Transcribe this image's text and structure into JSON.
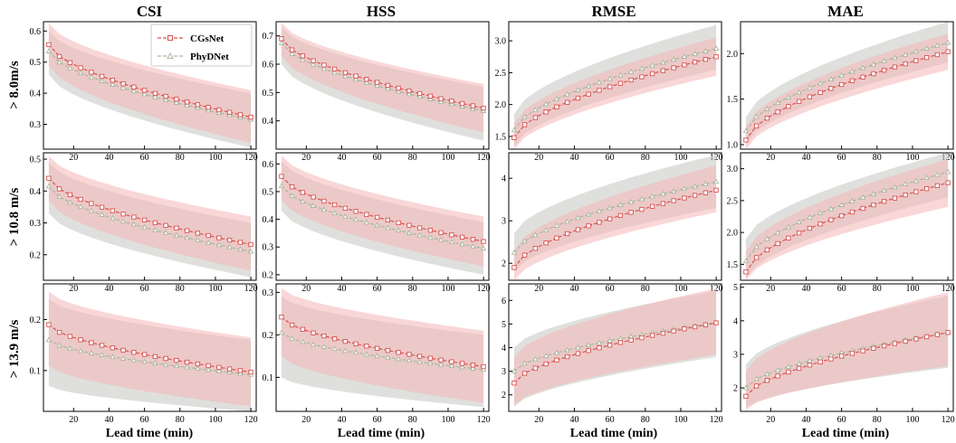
{
  "chart_data": {
    "type": "line",
    "column_titles": [
      "CSI",
      "HSS",
      "RMSE",
      "MAE"
    ],
    "row_labels": [
      "> 8.0m/s",
      "> 10.8 m/s",
      "> 13.9 m/s"
    ],
    "xlabel": "Lead time (min)",
    "x": [
      6,
      12,
      18,
      24,
      30,
      36,
      42,
      48,
      54,
      60,
      66,
      72,
      78,
      84,
      90,
      96,
      102,
      108,
      114,
      120
    ],
    "x_range": [
      3,
      123
    ],
    "x_ticks": [
      20,
      40,
      60,
      80,
      100,
      120
    ],
    "colors": {
      "CGsNet": "#d9534f",
      "PhyDNet": "#a9b8a0",
      "CGsNet_band": "#f4b6b6",
      "PhyDNet_band": "#c9ccc6"
    },
    "legend": {
      "entries": [
        "CGsNet",
        "PhyDNet"
      ],
      "location": "upper-right of first panel"
    },
    "panels": [
      {
        "row": 0,
        "col": 0,
        "metric": "CSI",
        "threshold": "> 8.0m/s",
        "ylim": [
          0.22,
          0.63
        ],
        "y_ticks": [
          0.3,
          0.4,
          0.5,
          0.6
        ],
        "series": [
          {
            "name": "CGsNet",
            "start": 0.556,
            "end": 0.323,
            "band_upper_start": 0.625,
            "band_upper_end": 0.41,
            "band_lower_start": 0.49,
            "band_lower_end": 0.24
          },
          {
            "name": "PhyDNet",
            "start": 0.535,
            "end": 0.315,
            "band_upper_start": 0.6,
            "band_upper_end": 0.4,
            "band_lower_start": 0.46,
            "band_lower_end": 0.225
          }
        ]
      },
      {
        "row": 0,
        "col": 1,
        "metric": "HSS",
        "threshold": "> 8.0m/s",
        "ylim": [
          0.3,
          0.75
        ],
        "y_ticks": [
          0.4,
          0.5,
          0.6,
          0.7
        ],
        "series": [
          {
            "name": "CGsNet",
            "start": 0.69,
            "end": 0.445,
            "band_upper_start": 0.745,
            "band_upper_end": 0.53,
            "band_lower_start": 0.63,
            "band_lower_end": 0.36
          },
          {
            "name": "PhyDNet",
            "start": 0.675,
            "end": 0.435,
            "band_upper_start": 0.73,
            "band_upper_end": 0.52,
            "band_lower_start": 0.6,
            "band_lower_end": 0.33
          }
        ]
      },
      {
        "row": 0,
        "col": 2,
        "metric": "RMSE",
        "threshold": "> 8.0m/s",
        "ylim": [
          1.3,
          3.3
        ],
        "y_ticks": [
          1.5,
          2.0,
          2.5,
          3.0
        ],
        "series": [
          {
            "name": "CGsNet",
            "start": 1.48,
            "end": 2.75,
            "band_upper_start": 1.7,
            "band_upper_end": 3.05,
            "band_lower_start": 1.3,
            "band_lower_end": 2.45
          },
          {
            "name": "PhyDNet",
            "start": 1.6,
            "end": 2.88,
            "band_upper_start": 1.85,
            "band_upper_end": 3.25,
            "band_lower_start": 1.35,
            "band_lower_end": 2.55
          }
        ]
      },
      {
        "row": 0,
        "col": 3,
        "metric": "MAE",
        "threshold": "> 8.0m/s",
        "ylim": [
          0.95,
          2.35
        ],
        "y_ticks": [
          1.0,
          1.5,
          2.0
        ],
        "series": [
          {
            "name": "CGsNet",
            "start": 1.05,
            "end": 2.02,
            "band_upper_start": 1.2,
            "band_upper_end": 2.22,
            "band_lower_start": 0.95,
            "band_lower_end": 1.82
          },
          {
            "name": "PhyDNet",
            "start": 1.15,
            "end": 2.12,
            "band_upper_start": 1.3,
            "band_upper_end": 2.35,
            "band_lower_start": 1.0,
            "band_lower_end": 1.9
          }
        ]
      },
      {
        "row": 1,
        "col": 0,
        "metric": "CSI",
        "threshold": "> 10.8 m/s",
        "ylim": [
          0.12,
          0.52
        ],
        "y_ticks": [
          0.2,
          0.3,
          0.4,
          0.5
        ],
        "series": [
          {
            "name": "CGsNet",
            "start": 0.44,
            "end": 0.232,
            "band_upper_start": 0.51,
            "band_upper_end": 0.32,
            "band_lower_start": 0.37,
            "band_lower_end": 0.15
          },
          {
            "name": "PhyDNet",
            "start": 0.415,
            "end": 0.21,
            "band_upper_start": 0.49,
            "band_upper_end": 0.3,
            "band_lower_start": 0.33,
            "band_lower_end": 0.13
          }
        ]
      },
      {
        "row": 1,
        "col": 1,
        "metric": "HSS",
        "threshold": "> 10.8 m/s",
        "ylim": [
          0.18,
          0.64
        ],
        "y_ticks": [
          0.2,
          0.3,
          0.4,
          0.5,
          0.6
        ],
        "series": [
          {
            "name": "CGsNet",
            "start": 0.555,
            "end": 0.32,
            "band_upper_start": 0.63,
            "band_upper_end": 0.41,
            "band_lower_start": 0.47,
            "band_lower_end": 0.23
          },
          {
            "name": "PhyDNet",
            "start": 0.52,
            "end": 0.295,
            "band_upper_start": 0.61,
            "band_upper_end": 0.39,
            "band_lower_start": 0.43,
            "band_lower_end": 0.2
          }
        ]
      },
      {
        "row": 1,
        "col": 2,
        "metric": "RMSE",
        "threshold": "> 10.8 m/s",
        "ylim": [
          1.6,
          4.6
        ],
        "y_ticks": [
          2,
          3,
          4
        ],
        "series": [
          {
            "name": "CGsNet",
            "start": 1.9,
            "end": 3.72,
            "band_upper_start": 2.3,
            "band_upper_end": 4.3,
            "band_lower_start": 1.6,
            "band_lower_end": 3.2
          },
          {
            "name": "PhyDNet",
            "start": 2.25,
            "end": 3.92,
            "band_upper_start": 2.7,
            "band_upper_end": 4.55,
            "band_lower_start": 1.8,
            "band_lower_end": 3.3
          }
        ]
      },
      {
        "row": 1,
        "col": 3,
        "metric": "MAE",
        "threshold": "> 10.8 m/s",
        "ylim": [
          1.25,
          3.25
        ],
        "y_ticks": [
          1.5,
          2.0,
          2.5,
          3.0
        ],
        "series": [
          {
            "name": "CGsNet",
            "start": 1.38,
            "end": 2.78,
            "band_upper_start": 1.7,
            "band_upper_end": 3.15,
            "band_lower_start": 1.25,
            "band_lower_end": 2.4
          },
          {
            "name": "PhyDNet",
            "start": 1.55,
            "end": 2.95,
            "band_upper_start": 1.9,
            "band_upper_end": 3.25,
            "band_lower_start": 1.28,
            "band_lower_end": 2.55
          }
        ]
      },
      {
        "row": 2,
        "col": 0,
        "metric": "CSI",
        "threshold": "> 13.9 m/s",
        "ylim": [
          0.02,
          0.27
        ],
        "y_ticks": [
          0.1,
          0.2
        ],
        "series": [
          {
            "name": "CGsNet",
            "start": 0.19,
            "end": 0.097,
            "band_upper_start": 0.255,
            "band_upper_end": 0.165,
            "band_lower_start": 0.11,
            "band_lower_end": 0.03
          },
          {
            "name": "PhyDNet",
            "start": 0.16,
            "end": 0.092,
            "band_upper_start": 0.24,
            "band_upper_end": 0.16,
            "band_lower_start": 0.07,
            "band_lower_end": 0.02
          }
        ]
      },
      {
        "row": 2,
        "col": 1,
        "metric": "HSS",
        "threshold": "> 13.9 m/s",
        "ylim": [
          0.02,
          0.32
        ],
        "y_ticks": [
          0.1,
          0.2,
          0.3
        ],
        "series": [
          {
            "name": "CGsNet",
            "start": 0.242,
            "end": 0.125,
            "band_upper_start": 0.31,
            "band_upper_end": 0.21,
            "band_lower_start": 0.15,
            "band_lower_end": 0.04
          },
          {
            "name": "PhyDNet",
            "start": 0.205,
            "end": 0.118,
            "band_upper_start": 0.29,
            "band_upper_end": 0.2,
            "band_lower_start": 0.1,
            "band_lower_end": 0.03
          }
        ]
      },
      {
        "row": 2,
        "col": 2,
        "metric": "RMSE",
        "threshold": "> 13.9 m/s",
        "ylim": [
          1.3,
          6.7
        ],
        "y_ticks": [
          2,
          3,
          4,
          5,
          6
        ],
        "series": [
          {
            "name": "CGsNet",
            "start": 2.5,
            "end": 5.05,
            "band_upper_start": 3.6,
            "band_upper_end": 6.5,
            "band_lower_start": 1.55,
            "band_lower_end": 3.7
          },
          {
            "name": "PhyDNet",
            "start": 3.0,
            "end": 5.05,
            "band_upper_start": 4.0,
            "band_upper_end": 6.4,
            "band_lower_start": 1.5,
            "band_lower_end": 3.6
          }
        ]
      },
      {
        "row": 2,
        "col": 3,
        "metric": "MAE",
        "threshold": "> 13.9 m/s",
        "ylim": [
          1.3,
          5.1
        ],
        "y_ticks": [
          2,
          3,
          4,
          5
        ],
        "series": [
          {
            "name": "CGsNet",
            "start": 1.75,
            "end": 3.65,
            "band_upper_start": 2.5,
            "band_upper_end": 4.85,
            "band_lower_start": 1.35,
            "band_lower_end": 2.65
          },
          {
            "name": "PhyDNet",
            "start": 2.0,
            "end": 3.65,
            "band_upper_start": 2.7,
            "band_upper_end": 4.75,
            "band_lower_start": 1.4,
            "band_lower_end": 2.6
          }
        ]
      }
    ]
  }
}
